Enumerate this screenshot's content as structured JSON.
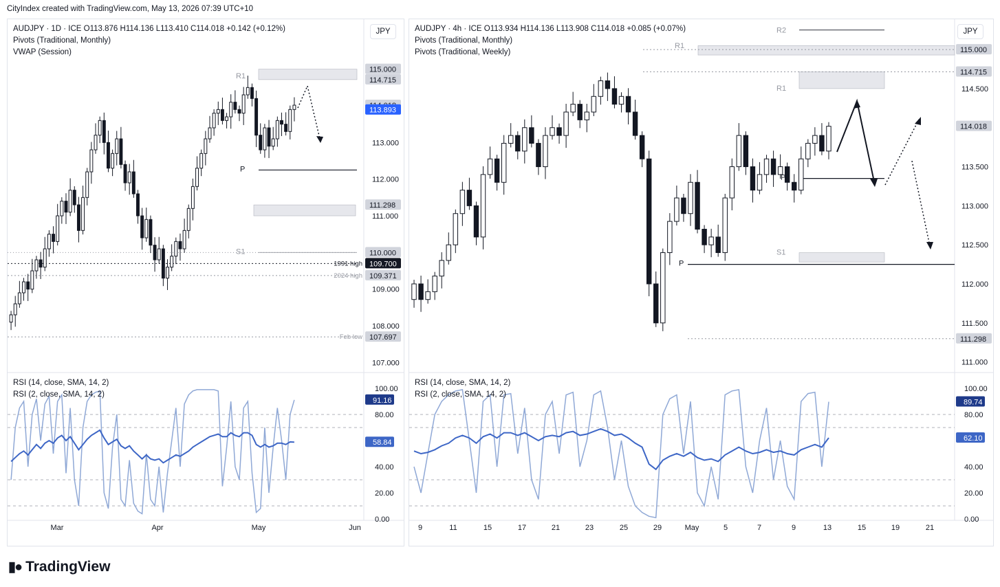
{
  "header": {
    "text": "CityIndex created with TradingView.com, May 13, 2026 07:39 UTC+10"
  },
  "brand": {
    "logo_icon": "tradingview-logo-icon",
    "name": "TradingView"
  },
  "colors": {
    "up": "#131722",
    "down": "#131722",
    "rsi2": "#8fa8d6",
    "rsi14": "#3d66c6",
    "zone": "#d1d4dc",
    "grid": "#e0e3eb",
    "axis_text": "#131722",
    "accent_label": "#2962ff"
  },
  "left": {
    "legend": [
      "AUDJPY · 1D · ICE  O113.876  H114.136  L113.410  C114.018  +0.142 (+0.12%)",
      "Pivots (Traditional, Monthly)",
      "VWAP (Session)"
    ],
    "currency": "JPY",
    "rsi_legend": [
      "RSI (14, close, SMA, 14, 2)",
      "RSI (2, close, SMA, 14, 2)"
    ],
    "price_ticks": [
      "113.000",
      "112.000",
      "111.000",
      "109.000",
      "108.000",
      "107.000"
    ],
    "price_tags": [
      {
        "text": "115.000",
        "style": "grey"
      },
      {
        "text": "114.715",
        "style": "grey"
      },
      {
        "text": "114.018",
        "style": "grey"
      },
      {
        "text": "113.893",
        "style": "blue"
      },
      {
        "text": "111.298",
        "style": "grey"
      },
      {
        "text": "110.000",
        "style": "grey"
      },
      {
        "text": "109.700",
        "style": "black"
      },
      {
        "text": "109.371",
        "style": "grey"
      },
      {
        "text": "107.697",
        "style": "grey"
      }
    ],
    "line_labels": [
      "1991 high",
      "2024 high",
      "Feb low"
    ],
    "pivot_labels": [
      "R1",
      "P",
      "S1"
    ],
    "rsi_ticks": [
      "100.00",
      "80.00",
      "40.00",
      "20.00",
      "0.00"
    ],
    "rsi_tags": [
      {
        "text": "91.16",
        "style": "navy"
      },
      {
        "text": "58.84",
        "style": "blue"
      }
    ],
    "time_labels": [
      "Mar",
      "Apr",
      "May",
      "Jun"
    ]
  },
  "right": {
    "legend": [
      "AUDJPY · 4h · ICE  O113.934  H114.136  L113.908  C114.018  +0.085 (+0.07%)",
      "Pivots (Traditional, Monthly)",
      "Pivots (Traditional, Weekly)"
    ],
    "currency": "JPY",
    "rsi_legend": [
      "RSI (14, close, SMA, 14, 2)",
      "RSI (2, close, SMA, 14, 2)"
    ],
    "price_ticks": [
      "114.500",
      "113.500",
      "113.000",
      "112.500",
      "112.000",
      "111.500",
      "111.000"
    ],
    "price_tags": [
      {
        "text": "115.000",
        "style": "grey"
      },
      {
        "text": "114.715",
        "style": "grey"
      },
      {
        "text": "114.018",
        "style": "grey"
      },
      {
        "text": "111.298",
        "style": "grey"
      }
    ],
    "pivot_labels": [
      "R2",
      "R1",
      "R1",
      "P",
      "P",
      "S1"
    ],
    "rsi_ticks": [
      "100.00",
      "80.00",
      "40.00",
      "20.00",
      "0.00"
    ],
    "rsi_tags": [
      {
        "text": "89.74",
        "style": "navy"
      },
      {
        "text": "62.10",
        "style": "blue"
      }
    ],
    "time_labels": [
      "9",
      "11",
      "15",
      "17",
      "21",
      "23",
      "25",
      "29",
      "May",
      "5",
      "7",
      "9",
      "13",
      "15",
      "19",
      "21"
    ]
  },
  "chart_data": [
    {
      "type": "candlestick",
      "title": "AUDJPY · 1D · ICE",
      "x_range": [
        "Feb",
        "Jun"
      ],
      "ylim": [
        106.8,
        115.8
      ],
      "last_close": 114.018,
      "levels": {
        "R1": 114.715,
        "monthly_pivot": 112.25,
        "S1_zone": [
          111.298,
          111.0
        ],
        "1991 high": 109.7,
        "2024 high": 109.371,
        "Feb low": 107.697,
        "round": [
          115.0,
          110.0
        ]
      },
      "closes": [
        108.3,
        108.6,
        108.9,
        109.2,
        109.0,
        109.5,
        109.8,
        109.6,
        110.1,
        110.5,
        110.3,
        111.0,
        111.4,
        111.1,
        111.7,
        111.3,
        110.6,
        111.5,
        112.2,
        112.8,
        113.2,
        113.6,
        113.0,
        112.3,
        112.7,
        113.1,
        112.4,
        111.9,
        112.2,
        111.6,
        111.0,
        110.4,
        110.9,
        110.2,
        109.8,
        110.1,
        109.3,
        109.6,
        109.9,
        110.3,
        110.1,
        110.6,
        111.2,
        111.8,
        112.3,
        112.7,
        113.1,
        113.4,
        113.8,
        113.9,
        113.6,
        113.7,
        114.1,
        113.9,
        113.8,
        114.3,
        114.5,
        114.2,
        113.2,
        112.8,
        113.4,
        112.9,
        113.1,
        113.6,
        113.5,
        113.3,
        113.9,
        114.018
      ],
      "rsi14_approx": [
        44,
        47,
        50,
        52,
        49,
        53,
        57,
        54,
        58,
        60,
        58,
        62,
        64,
        60,
        63,
        58,
        53,
        57,
        61,
        64,
        66,
        68,
        62,
        57,
        59,
        61,
        56,
        54,
        56,
        52,
        49,
        46,
        49,
        46,
        45,
        46,
        43,
        45,
        47,
        49,
        48,
        50,
        52,
        55,
        57,
        59,
        61,
        63,
        64,
        65,
        63,
        63,
        66,
        64,
        63,
        66,
        66,
        64,
        57,
        55,
        57,
        55,
        56,
        58,
        58,
        57,
        59,
        58.84
      ],
      "rsi2_approx": [
        30,
        70,
        85,
        90,
        40,
        80,
        92,
        60,
        88,
        94,
        50,
        90,
        95,
        35,
        85,
        30,
        10,
        70,
        90,
        95,
        97,
        98,
        20,
        8,
        55,
        80,
        15,
        10,
        45,
        12,
        6,
        4,
        50,
        15,
        10,
        40,
        5,
        35,
        60,
        85,
        40,
        88,
        95,
        98,
        99,
        99,
        99,
        99,
        99,
        98,
        25,
        55,
        90,
        40,
        30,
        85,
        90,
        35,
        5,
        8,
        70,
        20,
        55,
        85,
        60,
        30,
        80,
        91.16
      ]
    },
    {
      "type": "candlestick",
      "title": "AUDJPY · 4h · ICE",
      "x_range": [
        "Apr 8",
        "Apr 22"
      ],
      "ylim": [
        110.9,
        115.3
      ],
      "last_close": 114.018,
      "levels": {
        "monthly_R2": 115.25,
        "monthly_R1": 115.0,
        "weekly_R1_zone": [
          114.715,
          114.5
        ],
        "monthly_pivot": 112.25,
        "weekly_pivot": 113.35,
        "weekly_S1_zone": [
          112.4,
          112.28
        ],
        "Feb low line": 111.298
      },
      "closes": [
        112.0,
        111.8,
        111.9,
        112.1,
        112.3,
        112.5,
        112.9,
        113.2,
        113.0,
        112.6,
        113.4,
        113.6,
        113.3,
        113.8,
        113.9,
        113.7,
        114.0,
        113.8,
        113.5,
        113.9,
        114.0,
        113.9,
        114.2,
        114.3,
        114.1,
        114.2,
        114.4,
        114.6,
        114.5,
        114.3,
        114.4,
        114.2,
        113.9,
        113.6,
        112.0,
        111.5,
        112.4,
        112.8,
        113.1,
        112.9,
        113.3,
        112.7,
        112.5,
        112.6,
        112.4,
        113.1,
        113.5,
        113.9,
        113.5,
        113.2,
        113.4,
        113.6,
        113.4,
        113.5,
        113.3,
        113.2,
        113.6,
        113.8,
        113.9,
        113.7,
        114.018
      ],
      "rsi14_approx": [
        52,
        50,
        51,
        53,
        56,
        58,
        62,
        64,
        62,
        58,
        63,
        65,
        62,
        66,
        66,
        64,
        66,
        63,
        60,
        63,
        64,
        63,
        66,
        67,
        64,
        65,
        67,
        69,
        67,
        64,
        65,
        62,
        58,
        55,
        42,
        38,
        45,
        48,
        50,
        48,
        51,
        47,
        45,
        46,
        44,
        49,
        52,
        55,
        52,
        50,
        51,
        53,
        51,
        52,
        50,
        49,
        53,
        55,
        57,
        55,
        62.1
      ],
      "rsi2_approx": [
        40,
        20,
        50,
        80,
        90,
        95,
        98,
        99,
        60,
        20,
        90,
        95,
        40,
        95,
        96,
        50,
        85,
        30,
        15,
        80,
        90,
        50,
        95,
        97,
        40,
        60,
        95,
        98,
        70,
        30,
        60,
        25,
        10,
        5,
        2,
        1,
        80,
        92,
        95,
        50,
        90,
        20,
        10,
        40,
        15,
        95,
        98,
        99,
        40,
        20,
        60,
        85,
        30,
        60,
        25,
        15,
        90,
        96,
        97,
        40,
        89.74
      ]
    }
  ]
}
